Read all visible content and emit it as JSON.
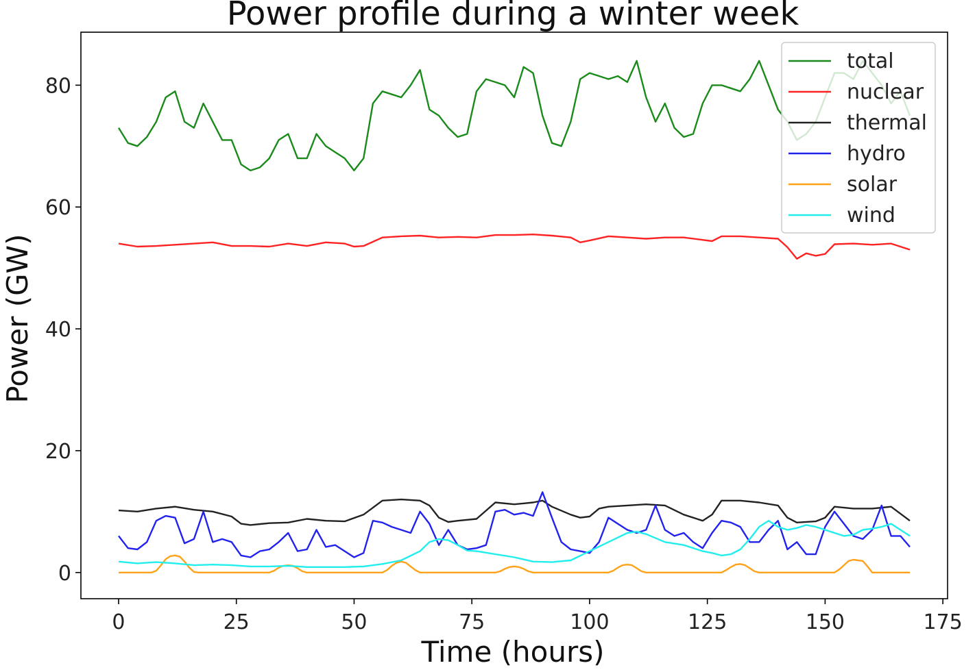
{
  "chart_data": {
    "type": "line",
    "title": "Power profile during a winter week",
    "xlabel": "Time (hours)",
    "ylabel": "Power (GW)",
    "xlim": [
      -8,
      176
    ],
    "ylim": [
      -4.3,
      88.7
    ],
    "xticks": [
      0,
      25,
      50,
      75,
      100,
      125,
      150,
      175
    ],
    "yticks": [
      0,
      20,
      40,
      60,
      80
    ],
    "grid": false,
    "legend_position": "top-right",
    "series": [
      {
        "name": "total",
        "color": "#1a8a1a",
        "x": [
          0,
          2,
          4,
          6,
          8,
          10,
          12,
          14,
          16,
          18,
          20,
          22,
          24,
          26,
          28,
          30,
          32,
          34,
          36,
          38,
          40,
          42,
          44,
          46,
          48,
          50,
          52,
          54,
          56,
          58,
          60,
          62,
          64,
          66,
          68,
          70,
          72,
          74,
          76,
          78,
          80,
          82,
          84,
          86,
          88,
          90,
          92,
          94,
          96,
          98,
          100,
          102,
          104,
          106,
          108,
          110,
          112,
          114,
          116,
          118,
          120,
          122,
          124,
          126,
          128,
          130,
          132,
          134,
          136,
          138,
          140,
          142,
          144,
          146,
          148,
          150,
          152,
          154,
          156,
          158,
          160,
          162,
          164,
          166,
          168
        ],
        "values": [
          73,
          70.5,
          70,
          71.5,
          74,
          78,
          79,
          74,
          73,
          77,
          74,
          71,
          71,
          67,
          66,
          66.5,
          68,
          71,
          72,
          68,
          68,
          72,
          70,
          69,
          68,
          66,
          68,
          77,
          79,
          78.5,
          78,
          80,
          82.5,
          76,
          75,
          73,
          71.5,
          72,
          79,
          81,
          80.5,
          80,
          78,
          83,
          82,
          75,
          70.5,
          70,
          74,
          81,
          82,
          81.5,
          81,
          81.5,
          80.5,
          84,
          78,
          74,
          77,
          73,
          71.5,
          72,
          77,
          80,
          80,
          79.5,
          79,
          81,
          84,
          80,
          76,
          74,
          71,
          72,
          74,
          78,
          82,
          82,
          81,
          84,
          82,
          80,
          77,
          79,
          75
        ]
      },
      {
        "name": "nuclear",
        "color": "#ff2222",
        "x": [
          0,
          4,
          8,
          12,
          16,
          20,
          24,
          28,
          32,
          36,
          40,
          44,
          48,
          50,
          52,
          56,
          60,
          64,
          68,
          72,
          76,
          80,
          84,
          88,
          92,
          96,
          98,
          100,
          104,
          108,
          112,
          116,
          120,
          124,
          126,
          128,
          132,
          136,
          140,
          142,
          144,
          146,
          148,
          150,
          152,
          156,
          160,
          164,
          168
        ],
        "values": [
          54,
          53.5,
          53.6,
          53.8,
          54,
          54.2,
          53.6,
          53.6,
          53.5,
          54,
          53.6,
          54.2,
          54,
          53.5,
          53.6,
          55,
          55.2,
          55.3,
          55,
          55.1,
          55,
          55.4,
          55.4,
          55.5,
          55.3,
          55,
          54.2,
          54.5,
          55.2,
          55,
          54.8,
          55,
          55,
          54.6,
          54.4,
          55.2,
          55.2,
          55,
          54.8,
          53.4,
          51.5,
          52.4,
          52,
          52.3,
          53.9,
          54,
          53.8,
          54,
          53
        ]
      },
      {
        "name": "thermal",
        "color": "#222222",
        "x": [
          0,
          4,
          8,
          12,
          16,
          20,
          24,
          26,
          28,
          32,
          36,
          40,
          44,
          48,
          52,
          56,
          60,
          64,
          66,
          68,
          70,
          72,
          76,
          80,
          84,
          88,
          90,
          92,
          96,
          98,
          100,
          102,
          104,
          108,
          112,
          116,
          120,
          124,
          126,
          128,
          132,
          136,
          140,
          142,
          144,
          148,
          150,
          152,
          156,
          160,
          164,
          168
        ],
        "values": [
          10.2,
          10,
          10.5,
          10.8,
          10.3,
          10,
          9.2,
          8,
          7.8,
          8.1,
          8.2,
          8.8,
          8.5,
          8.4,
          9.5,
          11.8,
          12,
          11.8,
          11,
          9,
          8.3,
          8.5,
          8.8,
          11.5,
          11.2,
          11.5,
          11.8,
          10.8,
          9.5,
          9,
          9.2,
          10.5,
          10.8,
          11,
          11.2,
          11,
          9.5,
          8.5,
          9.5,
          11.8,
          11.8,
          11.5,
          11,
          9,
          8.2,
          8.4,
          9,
          10.8,
          10.5,
          10.5,
          10.8,
          8.5
        ]
      },
      {
        "name": "hydro",
        "color": "#2222ee",
        "x": [
          0,
          2,
          4,
          6,
          8,
          10,
          12,
          14,
          16,
          18,
          20,
          22,
          24,
          26,
          28,
          30,
          32,
          34,
          36,
          38,
          40,
          42,
          44,
          46,
          48,
          50,
          52,
          54,
          56,
          58,
          60,
          62,
          64,
          66,
          68,
          70,
          72,
          74,
          76,
          78,
          80,
          82,
          84,
          86,
          88,
          90,
          92,
          94,
          96,
          98,
          100,
          102,
          104,
          106,
          108,
          110,
          112,
          114,
          116,
          118,
          120,
          122,
          124,
          126,
          128,
          130,
          132,
          134,
          136,
          138,
          140,
          142,
          144,
          146,
          148,
          150,
          152,
          154,
          156,
          158,
          160,
          162,
          164,
          166,
          168
        ],
        "values": [
          6,
          4,
          3.8,
          5,
          8.5,
          9.3,
          9,
          4.8,
          5.5,
          10,
          5,
          5.5,
          5,
          2.8,
          2.5,
          3.5,
          3.8,
          5,
          6.5,
          3.5,
          3.8,
          7,
          4.2,
          4.5,
          3.5,
          2.5,
          3.2,
          8.5,
          8.2,
          7.5,
          7,
          6.5,
          10,
          8,
          4.5,
          7,
          4.5,
          3.8,
          4,
          4.5,
          10,
          10.3,
          9.5,
          9.8,
          9.3,
          13.2,
          9,
          5,
          3.8,
          3.5,
          3.2,
          5,
          9,
          8,
          7,
          6.5,
          7,
          11,
          7,
          6,
          6.5,
          5,
          4,
          6.5,
          8.5,
          8.2,
          7.5,
          5,
          5,
          7,
          8.5,
          3.8,
          5,
          3,
          3,
          7.5,
          10,
          8,
          6,
          5.5,
          7,
          11,
          6,
          6,
          4.2
        ]
      },
      {
        "name": "solar",
        "color": "#ffa21a",
        "x": [
          0,
          7,
          8,
          9,
          10,
          11,
          12,
          13,
          14,
          15,
          16,
          17,
          32,
          33,
          34,
          35,
          36,
          37,
          38,
          39,
          40,
          56,
          57,
          58,
          59,
          60,
          61,
          62,
          63,
          64,
          80,
          81,
          82,
          83,
          84,
          85,
          86,
          87,
          88,
          104,
          105,
          106,
          107,
          108,
          109,
          110,
          111,
          112,
          128,
          129,
          130,
          131,
          132,
          133,
          134,
          135,
          136,
          152,
          153,
          154,
          155,
          156,
          157,
          158,
          159,
          160,
          168
        ],
        "values": [
          0,
          0,
          0.3,
          1.2,
          2.2,
          2.7,
          2.8,
          2.6,
          1.8,
          0.8,
          0.1,
          0,
          0,
          0.3,
          0.8,
          1.1,
          1.2,
          1.1,
          0.7,
          0.2,
          0,
          0,
          0.4,
          1.1,
          1.6,
          1.8,
          1.6,
          1.0,
          0.4,
          0,
          0,
          0.2,
          0.6,
          0.9,
          1.0,
          0.9,
          0.6,
          0.2,
          0,
          0,
          0.3,
          0.8,
          1.2,
          1.3,
          1.2,
          0.7,
          0.2,
          0,
          0,
          0.4,
          0.9,
          1.3,
          1.4,
          1.2,
          0.7,
          0.2,
          0,
          0,
          0.5,
          1.2,
          1.9,
          2.1,
          2.0,
          1.9,
          1.0,
          0,
          0
        ]
      },
      {
        "name": "wind",
        "color": "#22eeee",
        "x": [
          0,
          4,
          8,
          12,
          16,
          20,
          24,
          28,
          32,
          36,
          40,
          44,
          48,
          52,
          56,
          60,
          64,
          66,
          68,
          70,
          72,
          74,
          76,
          80,
          84,
          88,
          92,
          96,
          100,
          104,
          108,
          110,
          112,
          116,
          120,
          124,
          126,
          128,
          130,
          132,
          134,
          136,
          138,
          140,
          142,
          144,
          146,
          148,
          150,
          152,
          154,
          156,
          158,
          160,
          162,
          164,
          166,
          168
        ],
        "values": [
          1.8,
          1.5,
          1.7,
          1.5,
          1.2,
          1.3,
          1.2,
          1.0,
          1.0,
          1.1,
          0.9,
          0.9,
          0.9,
          1.0,
          1.4,
          2.0,
          3.5,
          5.0,
          5.5,
          5.3,
          4.5,
          3.6,
          3.5,
          3.0,
          2.5,
          1.8,
          1.7,
          2.0,
          3.5,
          5.0,
          6.5,
          6.7,
          6.3,
          5.0,
          4.5,
          3.5,
          3.2,
          2.8,
          3.0,
          3.8,
          5.5,
          7.5,
          8.5,
          7.5,
          7.0,
          7.3,
          7.8,
          7.5,
          7.0,
          6.5,
          6.0,
          6.2,
          7.0,
          7.2,
          7.5,
          8.0,
          7.0,
          6.0
        ]
      }
    ]
  }
}
